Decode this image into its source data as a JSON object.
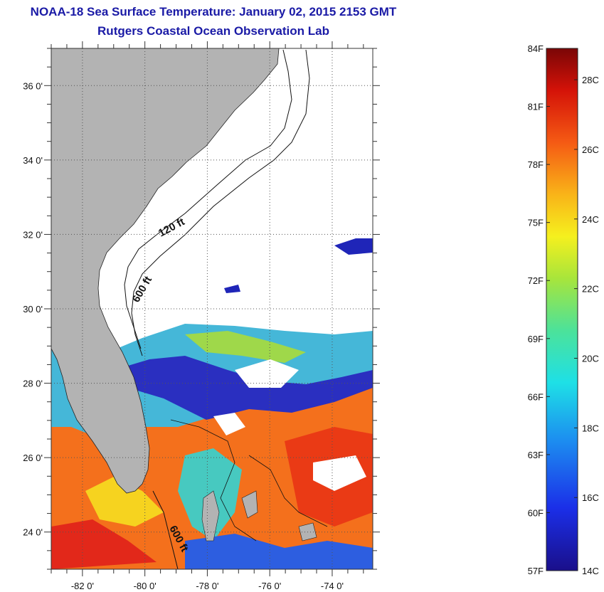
{
  "header": {
    "title": "NOAA-18 Sea Surface Temperature:  January 02, 2015 2153 GMT",
    "subtitle": "Rutgers Coastal Ocean Observation Lab"
  },
  "map": {
    "lon_ticks": [
      "-82 0'",
      "-80 0'",
      "-78 0'",
      "-76 0'",
      "-74 0'"
    ],
    "lat_ticks": [
      "36 0'",
      "34 0'",
      "32 0'",
      "30 0'",
      "28 0'",
      "26 0'",
      "24 0'"
    ],
    "lon_range": [
      -83.0,
      -72.7
    ],
    "lat_range": [
      23.0,
      37.0
    ],
    "contours": [
      "120 ft",
      "600 ft",
      "600 ft"
    ],
    "colors": {
      "land": "#b3b3b3",
      "cloud": "#ffffff",
      "cold": "#2a1fb5",
      "mid": "#3fd0c0",
      "warm": "#f04a10"
    }
  },
  "colorbar": {
    "fahrenheit": [
      "84F",
      "81F",
      "78F",
      "75F",
      "72F",
      "69F",
      "66F",
      "63F",
      "60F",
      "57F"
    ],
    "celsius": [
      "28C",
      "26C",
      "24C",
      "22C",
      "20C",
      "18C",
      "16C",
      "14C"
    ],
    "range_F": [
      57,
      84
    ],
    "range_C": [
      13.9,
      28.9
    ]
  }
}
